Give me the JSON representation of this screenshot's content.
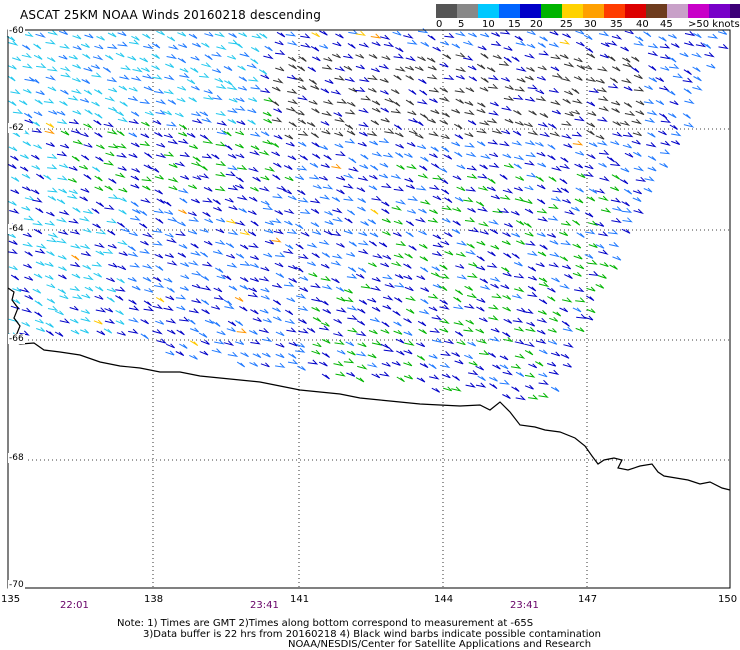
{
  "header": {
    "title": "ASCAT 25KM NOAA Winds 20160218 descending"
  },
  "colorbar": {
    "labels": [
      "0",
      "5",
      "10",
      "15",
      "20",
      "25",
      "30",
      "35",
      "40",
      "45",
      ">50 knots"
    ],
    "colors": [
      "#555555",
      "#888888",
      "#00c8ff",
      "#0064ff",
      "#0000c8",
      "#00b400",
      "#ffd200",
      "#ffa000",
      "#ff3c00",
      "#dc0000",
      "#6e3c1e",
      "#c8a0c8",
      "#c800c8",
      "#7800c8",
      "#3c0078"
    ]
  },
  "map": {
    "lon_range": [
      135,
      150
    ],
    "lat_range": [
      -70,
      -60
    ],
    "lon_ticks": [
      "135",
      "138",
      "141",
      "144",
      "147",
      "150"
    ],
    "lat_ticks": [
      "-60",
      "-62",
      "-64",
      "-66",
      "-68",
      "-70"
    ],
    "times": [
      {
        "text": "22:01",
        "color": "#660066"
      },
      {
        "text": "23:41",
        "color": "#660066"
      },
      {
        "text": "23:41",
        "color": "#660066"
      }
    ],
    "coastline_color": "#000000"
  },
  "notes": {
    "line1": "Note: 1) Times are GMT 2)Times along bottom correspond to measurement at -65S",
    "line2": "3)Data buffer is 22 hrs from 20160218 4) Black wind barbs indicate possible contamination",
    "line3": "NOAA/NESDIS/Center for Satellite Applications and Research"
  }
}
